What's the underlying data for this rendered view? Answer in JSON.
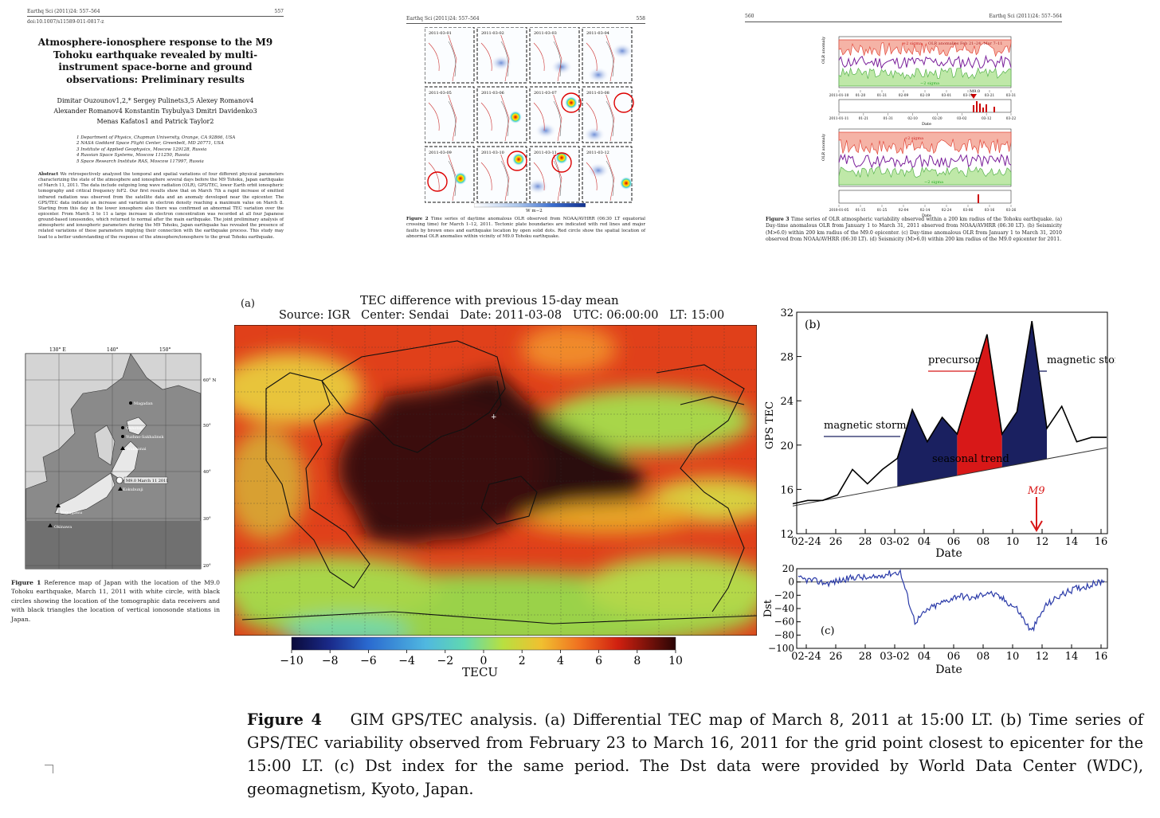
{
  "page1": {
    "running_head": "Earthq Sci (2011)24: 557–564",
    "page_number": "557",
    "doi": "doi:10.1007/s11589-011-0817-z",
    "title": "Atmosphere-ionosphere response to the M9 Tohoku earthquake revealed by multi-instrument space-borne and ground observations: Preliminary results",
    "authors_line1": "Dimitar Ouzounov1,2,*   Sergey Pulinets3,5   Alexey Romanov4",
    "authors_line2": "Alexander Romanov4   Konstantin Tsybulya3   Dmitri Davidenko3",
    "authors_line3": "Menas Kafatos1   and   Patrick Taylor2",
    "affiliations": [
      "1 Department of Physics, Chapman University, Orange, CA 92866, USA",
      "2 NASA Goddard Space Flight Center, Greenbelt, MD 20771, USA",
      "3 Institute of Applied Geophysics, Moscow 129128, Russia",
      "4 Russian Space Systems, Moscow 111250, Russia",
      "5 Space Research Institute RAS, Moscow 117997, Russia"
    ],
    "abstract_label": "Abstract",
    "abstract_text": "We retrospectively analyzed the temporal and spatial variations of four different physical parameters characterizing the state of the atmosphere and ionosphere several days before the M9 Tohoku, Japan earthquake of March 11, 2011. The data include outgoing long wave radiation (OLR), GPS/TEC, lower Earth orbit ionospheric tomography and critical frequency foF2. Our first results show that on March 7th a rapid increase of emitted infrared radiation was observed from the satellite data and an anomaly developed near the epicenter. The GPS/TEC data indicate an increase and variation in electron density reaching a maximum value on March 8. Starting from this day in the lower ionosphere also there was confirmed an abnormal TEC variation over the epicenter. From March 3 to 11 a large increase in electron concentration was recorded at all four Japanese ground-based ionosondes, which returned to normal after the main earthquake. The joint preliminary analysis of atmospheric and ionospheric parameters during the M9 Tohoku, Japan earthquake has revealed the presence of related variations of these parameters implying their connection with the earthquake process. This study may lead to a better understanding of the response of the atmosphere/ionosphere to the great Tohoku earthquake."
  },
  "page2": {
    "running_head": "Earthq Sci (2011)24: 557–564",
    "page_number": "558",
    "dates": [
      "2011-03-01",
      "2011-03-02",
      "2011-03-03",
      "2011-03-04",
      "2011-03-05",
      "2011-03-06",
      "2011-03-07",
      "2011-03-08",
      "2011-03-09",
      "2011-03-10",
      "2011-03-11",
      "2011-03-12"
    ],
    "colorbar_label": "W m−2",
    "caption_label": "Figure 2",
    "caption": "Time series of daytime anomalous OLR observed from NOAA/AVHRR (06:30 LT equatorial crossing time) for March 1–12, 2011. Tectonic plate boundaries are indicated with red lines and major faults by brown ones and earthquake location by open solid dots. Red circle show the spatial location of abnormal OLR anomalies within vicinity of M9.0 Tohoku earthquake."
  },
  "page3": {
    "page_number": "560",
    "running_head": "Earthq Sci (2011)24: 557–564",
    "panel_a_labels": {
      "sigma_plus": "+2 sigma",
      "legend": "OLR anomalies Feb 21–24, Mar 7–11",
      "sigma_minus": "−2 sigma",
      "m9": "M9.0"
    },
    "panel_a_ticks": [
      "2011-01-10",
      "01-20",
      "01-31",
      "02-09",
      "02-19",
      "03-01",
      "03-11",
      "03-21",
      "03-31"
    ],
    "panel_b_ticks": [
      "2011-01-11",
      "01-21",
      "01-31",
      "02-10",
      "02-20",
      "03-02",
      "03-12",
      "03-22"
    ],
    "panel_c_labels": {
      "sigma_plus": "+2 sigma",
      "sigma_minus": "−2 sigma"
    },
    "panel_d_ticks": [
      "2010-01-05",
      "01-15",
      "01-25",
      "02-04",
      "02-14",
      "02-24",
      "03-06",
      "03-16",
      "03-26"
    ],
    "y_label": "OLR anomaly",
    "x_label": "Date",
    "caption_label": "Figure 3",
    "caption": "Time series of OLR atmospheric variability observed within a 200 km radius of the Tohoku earthquake. (a) Day-time anomalous OLR from January 1 to March 31, 2011 observed from NOAA/AVHRR (06:30 LT). (b) Seismicity (M>6.0) within 200 km radius of the M9.0 epicenter. (c) Day-time anomalous OLR from January 1 to March 31, 2010 observed from NOAA/AVHRR (06:30 LT). (d) Seismicity (M>6.0) within 200 km radius of the M9.0 epicenter for 2011."
  },
  "figure1": {
    "lon_labels": [
      "130° E",
      "140°",
      "150°"
    ],
    "lat_labels": [
      "60° N",
      "50°",
      "40°",
      "30°",
      "20°"
    ],
    "places": [
      "Magadan",
      "Okhotsk",
      "Yuzhno-Sakhalinsk",
      "Wakkanai",
      "Kokubunji",
      "Yamagawa",
      "Okinawa"
    ],
    "epicenter_label": "M9.0 March 11 2011",
    "caption_label": "Figure 1",
    "caption": "Reference map of Japan with the location of the M9.0 Tohoku earthquake, March 11, 2011 with white circle, with black circles showing the location of the tomographic data receivers and with black triangles the location of vertical ionosonde stations in Japan."
  },
  "figure4a": {
    "panel_label": "(a)",
    "title": "TEC difference with previous 15-day mean",
    "subtitle": "Source: IGR   Center: Sendai   Date: 2011-03-08   UTC: 06:00:00   LT: 15:00",
    "colorbar_ticks": [
      "−10",
      "−8",
      "−6",
      "−4",
      "−2",
      "0",
      "2",
      "4",
      "6",
      "8",
      "10"
    ],
    "colorbar_label": "TECU"
  },
  "figure4b": {
    "panel_label": "(b)",
    "ylabel": "GPS TEC",
    "xlabel": "Date",
    "yticks": [
      "12",
      "16",
      "20",
      "24",
      "28",
      "32"
    ],
    "xticks": [
      "02-24",
      "26",
      "28",
      "03-02",
      "04",
      "06",
      "08",
      "10",
      "12",
      "14",
      "16"
    ],
    "annotations": {
      "magnetic_storm_1": "magnetic storm",
      "precursor": "precursor",
      "magnetic_storm_2": "magnetic storm",
      "seasonal_trend": "seasonal trend",
      "m9": "M9"
    }
  },
  "figure4c": {
    "panel_label": "(c)",
    "ylabel": "Dst",
    "xlabel": "Date",
    "yticks": [
      "20",
      "0",
      "−20",
      "−40",
      "−60",
      "−80",
      "−100"
    ],
    "xticks": [
      "02-24",
      "26",
      "28",
      "03-02",
      "04",
      "06",
      "08",
      "10",
      "12",
      "14",
      "16"
    ]
  },
  "figure4_caption": {
    "label": "Figure 4",
    "text": "GIM GPS/TEC analysis. (a) Differential TEC map of March 8, 2011 at 15:00 LT. (b) Time series of GPS/TEC variability observed from February 23 to March 16, 2011 for the grid point closest to epicenter for the 15:00 LT. (c) Dst index for the same period. The Dst data were provided by World Data Center (WDC), geomagnetism, Kyoto, Japan."
  },
  "chart_data": [
    {
      "type": "line",
      "name": "figure4b",
      "xlabel": "Date",
      "ylabel": "GPS TEC",
      "ylim": [
        12,
        32
      ],
      "x": [
        "02-23",
        "02-24",
        "02-25",
        "02-26",
        "02-27",
        "02-28",
        "03-01",
        "03-02",
        "03-03",
        "03-04",
        "03-05",
        "03-06",
        "03-07",
        "03-08",
        "03-09",
        "03-10",
        "03-11",
        "03-12",
        "03-13",
        "03-14",
        "03-15",
        "03-16"
      ],
      "series": [
        {
          "name": "",
          "values": [
            14.7,
            15.0,
            15.0,
            15.5,
            17.8,
            16.5,
            17.8,
            18.8,
            23.2,
            20.3,
            22.5,
            21.0,
            25.5,
            30.0,
            21.0,
            23.0,
            31.2,
            21.5,
            23.5,
            20.3,
            20.7,
            20.7
          ]
        },
        {
          "name": "seasonal trend",
          "values": [
            14.5,
            14.75,
            15.0,
            15.25,
            15.5,
            15.75,
            16.0,
            16.25,
            16.5,
            16.75,
            17.0,
            17.25,
            17.5,
            17.75,
            18.0,
            18.25,
            18.5,
            18.75,
            19.0,
            19.25,
            19.5,
            19.75
          ]
        }
      ],
      "grid": false
    },
    {
      "type": "line",
      "name": "figure4c",
      "xlabel": "Date",
      "ylabel": "Dst",
      "ylim": [
        -100,
        20
      ],
      "x": [
        "02-23",
        "02-24",
        "02-25",
        "02-26",
        "02-27",
        "02-28",
        "03-01",
        "03-02",
        "03-03",
        "03-04",
        "03-05",
        "03-06",
        "03-07",
        "03-08",
        "03-09",
        "03-10",
        "03-11",
        "03-12",
        "03-13",
        "03-14",
        "03-15",
        "03-16"
      ],
      "series": [
        {
          "name": "",
          "values": [
            5,
            2,
            -2,
            3,
            8,
            5,
            12,
            15,
            -60,
            -40,
            -30,
            -20,
            -25,
            -15,
            -25,
            -40,
            -75,
            -35,
            -20,
            -10,
            -5,
            2
          ]
        }
      ],
      "grid": false
    }
  ]
}
